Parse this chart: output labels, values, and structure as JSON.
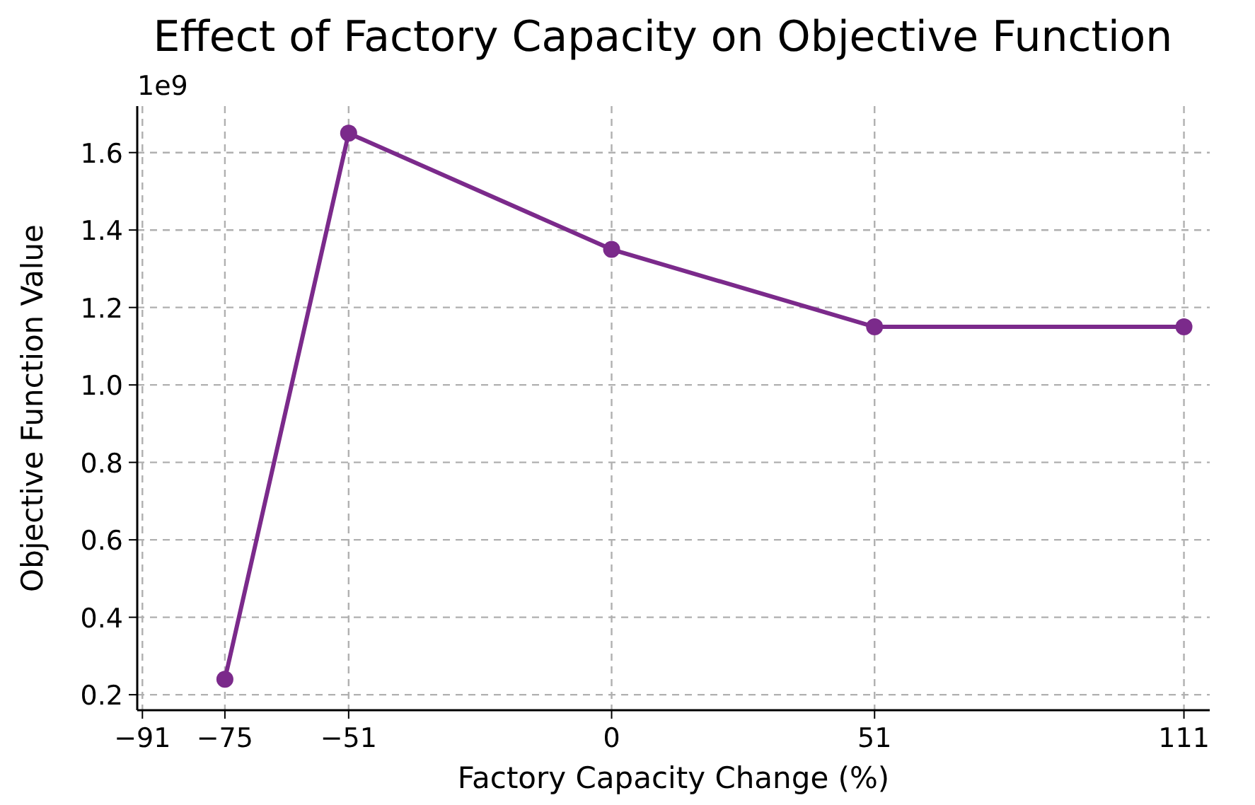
{
  "chart_data": {
    "type": "line",
    "title": "Effect of Factory Capacity on Objective Function",
    "xlabel": "Factory Capacity Change (%)",
    "ylabel": "Objective Function Value",
    "annotations": [
      "1e9"
    ],
    "x": [
      -75,
      -51,
      0,
      51,
      111
    ],
    "series": [
      {
        "color": "#7b2a8b",
        "values": [
          0.24,
          1.65,
          1.35,
          1.15,
          1.15
        ]
      }
    ],
    "xlim": [
      -92,
      116
    ],
    "xticks": [
      -91,
      -75,
      -51,
      0,
      51,
      111
    ],
    "ylim": [
      0.16,
      1.72
    ],
    "yticks": [
      0.2,
      0.4,
      0.6,
      0.8,
      {
        "value": 1,
        "label": "1.0"
      },
      1.2,
      1.4,
      1.6
    ],
    "grid": true,
    "marker": "circle",
    "line_style": "solid"
  }
}
